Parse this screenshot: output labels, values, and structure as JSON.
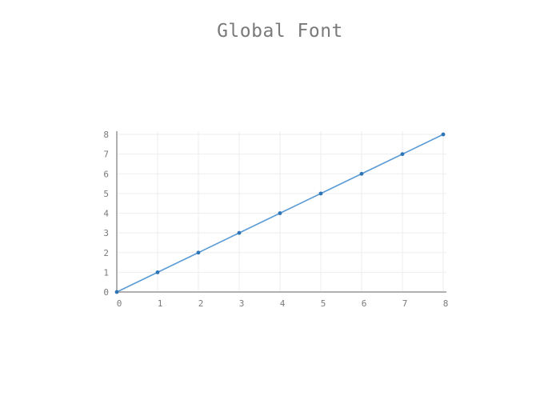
{
  "chart_data": {
    "type": "line",
    "title": "Global Font",
    "xlabel": "",
    "ylabel": "",
    "x": [
      0,
      1,
      2,
      3,
      4,
      5,
      6,
      7,
      8
    ],
    "series": [
      {
        "values": [
          0,
          1,
          2,
          3,
          4,
          5,
          6,
          7,
          8
        ]
      }
    ],
    "xlim": [
      0,
      8
    ],
    "ylim": [
      0,
      8
    ],
    "x_ticks": [
      0,
      1,
      2,
      3,
      4,
      5,
      6,
      7,
      8
    ],
    "y_ticks": [
      0,
      1,
      2,
      3,
      4,
      5,
      6,
      7,
      8
    ],
    "grid": true,
    "legend": "none",
    "colors": {
      "series": "#5b9bd5",
      "marker": "#2e75b6",
      "grid": "#eeeeee",
      "axis": "#b0b0b0",
      "text": "#7a7a7a"
    }
  }
}
